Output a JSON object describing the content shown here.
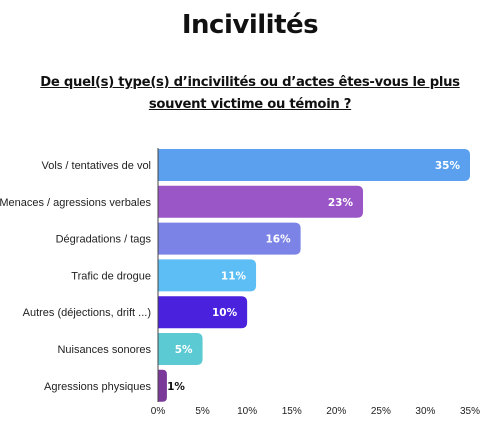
{
  "page": {
    "title": "Incivilités",
    "subtitle": "De quel(s) type(s) d’incivilités ou d’actes êtes-vous le plus souvent victime ou témoin ?"
  },
  "chart_data": {
    "type": "bar",
    "orientation": "horizontal",
    "categories": [
      "Vols / tentatives de vol",
      "Menaces / agressions verbales",
      "Dégradations / tags",
      "Trafic de drogue",
      "Autres (déjections, drift ...)",
      "Nuisances sonores",
      "Agressions physiques"
    ],
    "values": [
      35,
      23,
      16,
      11,
      10,
      5,
      1
    ],
    "value_labels": [
      "35%",
      "23%",
      "16%",
      "11%",
      "10%",
      "5%",
      "1%"
    ],
    "bar_colors": [
      "#5aa0ef",
      "#9a55c7",
      "#7b83e6",
      "#5cbef4",
      "#4a21dc",
      "#5ccad3",
      "#7b3a99"
    ],
    "label_colors": [
      "#ffffff",
      "#ffffff",
      "#ffffff",
      "#ffffff",
      "#ffffff",
      "#ffffff",
      "#111111"
    ],
    "xlim": [
      0,
      35
    ],
    "xticks": [
      0,
      5,
      10,
      15,
      20,
      25,
      30,
      35
    ],
    "xtick_labels": [
      "0%",
      "5%",
      "10%",
      "15%",
      "20%",
      "25%",
      "30%",
      "35%"
    ],
    "grid": false,
    "legend": "none"
  }
}
